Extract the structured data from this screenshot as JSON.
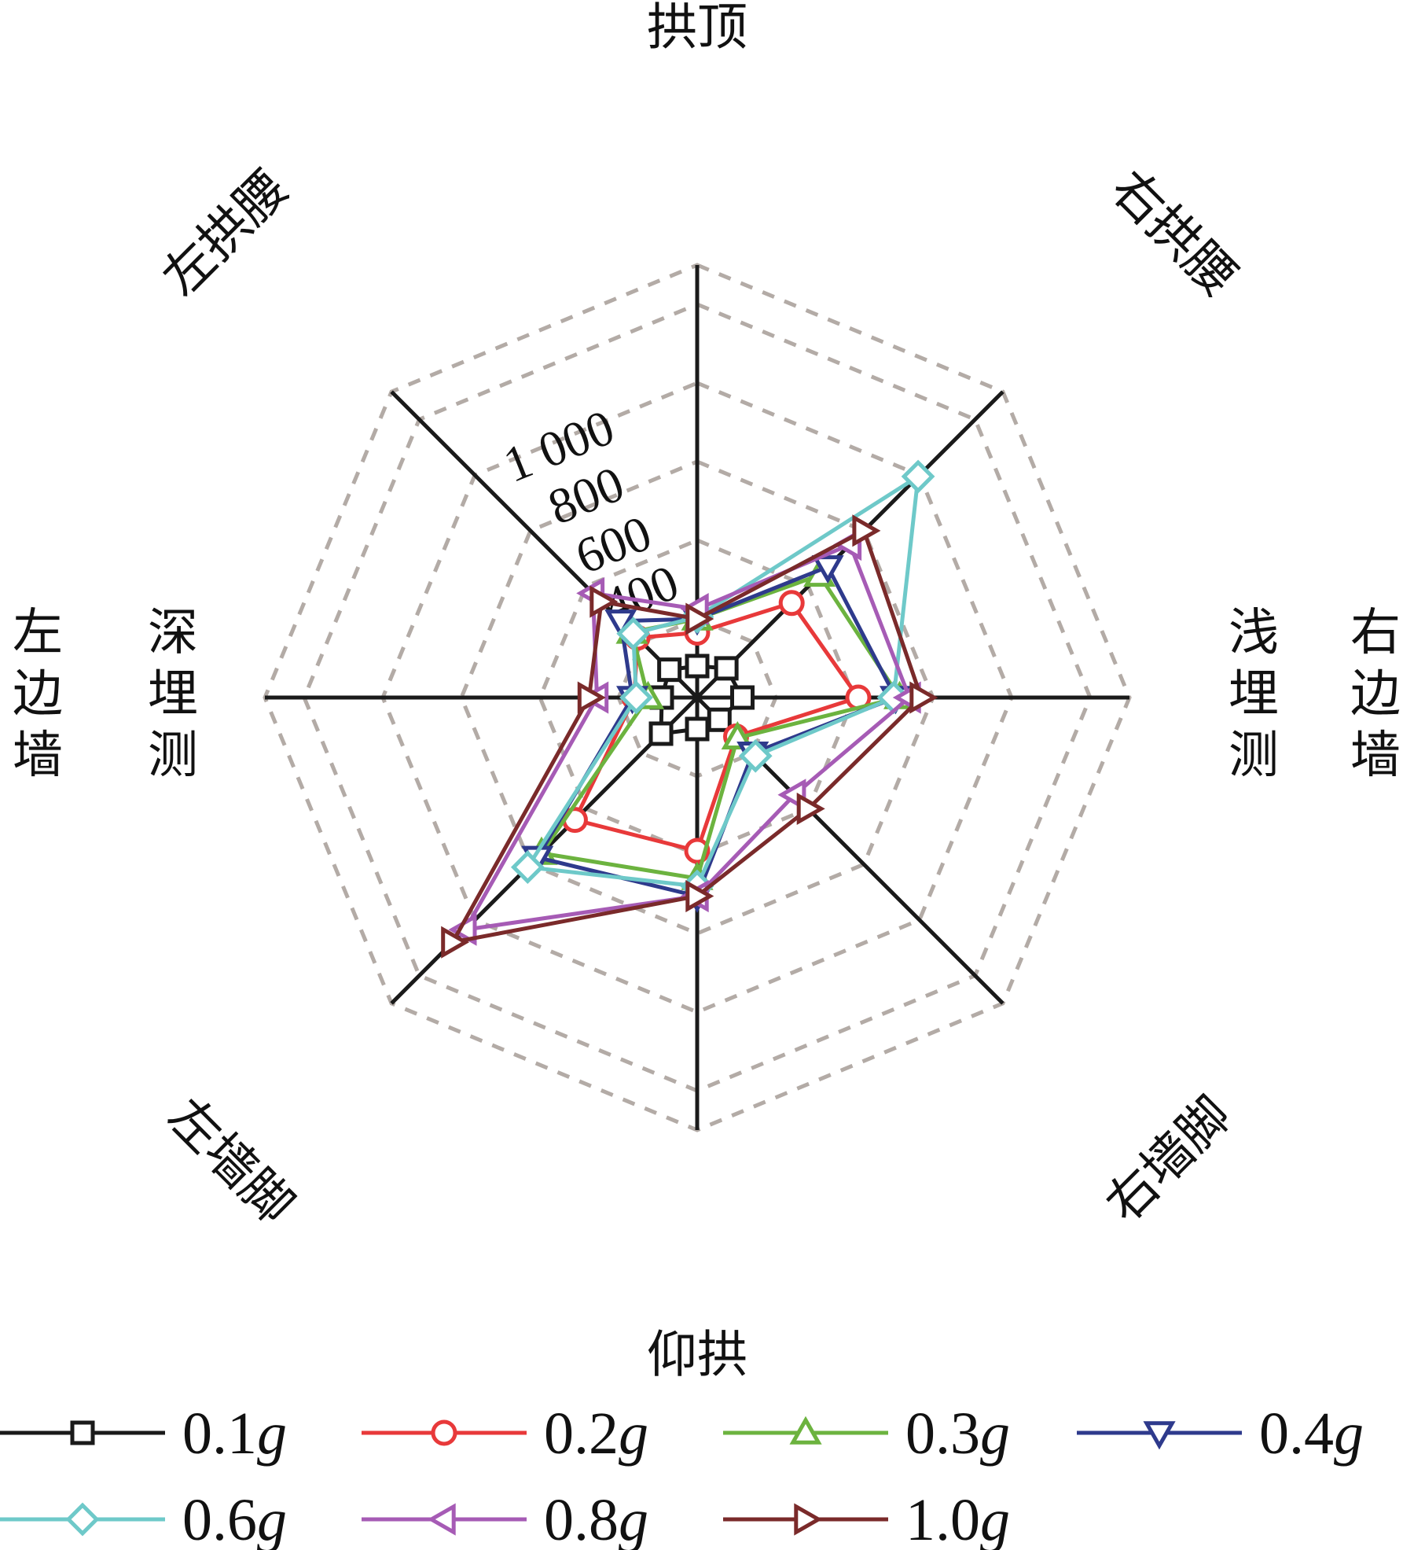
{
  "chart_data": {
    "type": "radar",
    "axes": [
      {
        "id": "crown",
        "label": "拱顶"
      },
      {
        "id": "right-haunch",
        "label": "右拱腰"
      },
      {
        "id": "right-wall",
        "label": "右边墙",
        "sublabel": "浅埋测"
      },
      {
        "id": "right-wall-foot",
        "label": "右墙脚"
      },
      {
        "id": "invert",
        "label": "仰拱"
      },
      {
        "id": "left-wall-foot",
        "label": "左墙脚"
      },
      {
        "id": "left-wall",
        "label": "左边墙",
        "sublabel": "深埋测"
      },
      {
        "id": "left-haunch",
        "label": "左拱腰"
      }
    ],
    "rlim": [
      0,
      1100
    ],
    "rings": [
      200,
      400,
      600,
      800,
      1000,
      1100
    ],
    "tick_labels": [
      {
        "value": 400,
        "text": "400"
      },
      {
        "value": 600,
        "text": "600"
      },
      {
        "value": 800,
        "text": "800"
      },
      {
        "value": 1000,
        "text": "1 000"
      }
    ],
    "grid": true,
    "legend": {
      "position": "bottom",
      "columns": 4
    },
    "series": [
      {
        "name": "0.1g",
        "name_num": "0.1",
        "name_unit": "g",
        "color": "#1a1a1a",
        "marker": "square",
        "values": [
          80,
          105,
          115,
          80,
          80,
          130,
          90,
          100
        ]
      },
      {
        "name": "0.2g",
        "name_num": "0.2",
        "name_unit": "g",
        "color": "#e8393a",
        "marker": "circle",
        "values": [
          165,
          340,
          410,
          140,
          390,
          440,
          160,
          215
        ]
      },
      {
        "name": "0.3g",
        "name_num": "0.3",
        "name_unit": "g",
        "color": "#6cb33f",
        "marker": "triangle-up",
        "values": [
          200,
          440,
          515,
          145,
          460,
          560,
          125,
          235
        ]
      },
      {
        "name": "0.4g",
        "name_num": "0.4",
        "name_unit": "g",
        "color": "#2e3a8c",
        "marker": "triangle-down",
        "values": [
          200,
          470,
          505,
          200,
          505,
          575,
          165,
          275
        ]
      },
      {
        "name": "0.6g",
        "name_num": "0.6",
        "name_unit": "g",
        "color": "#6ec9c9",
        "marker": "diamond",
        "values": [
          205,
          795,
          500,
          210,
          480,
          610,
          155,
          230
        ]
      },
      {
        "name": "0.8g",
        "name_num": "0.8",
        "name_unit": "g",
        "color": "#a65bb5",
        "marker": "triangle-left",
        "values": [
          225,
          550,
          540,
          350,
          505,
          835,
          255,
          375
        ]
      },
      {
        "name": "1.0g",
        "name_num": "1.0",
        "name_unit": "g",
        "color": "#7a2a2a",
        "marker": "triangle-right",
        "values": [
          200,
          600,
          570,
          400,
          505,
          880,
          275,
          345
        ]
      }
    ]
  }
}
